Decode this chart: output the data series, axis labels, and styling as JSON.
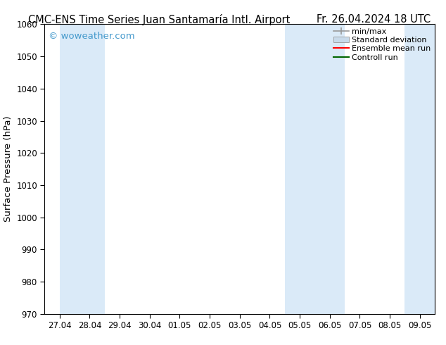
{
  "title_left": "CMC-ENS Time Series Juan Santamaría Intl. Airport",
  "title_right": "Fr. 26.04.2024 18 UTC",
  "ylabel": "Surface Pressure (hPa)",
  "ylim": [
    970,
    1060
  ],
  "yticks": [
    970,
    980,
    990,
    1000,
    1010,
    1020,
    1030,
    1040,
    1050,
    1060
  ],
  "xtick_labels": [
    "27.04",
    "28.04",
    "29.04",
    "30.04",
    "01.05",
    "02.05",
    "03.05",
    "04.05",
    "05.05",
    "06.05",
    "07.05",
    "08.05",
    "09.05"
  ],
  "watermark": "© woweather.com",
  "watermark_color": "#4499cc",
  "background_color": "#ffffff",
  "shaded_band_color": "#daeaf8",
  "shaded_ranges": [
    [
      0,
      1.5
    ],
    [
      7.5,
      9.5
    ],
    [
      11.5,
      13
    ]
  ],
  "legend_labels": [
    "min/max",
    "Standard deviation",
    "Ensemble mean run",
    "Controll run"
  ],
  "legend_minmax_color": "#999999",
  "legend_std_color": "#c8daea",
  "legend_ens_color": "#ff0000",
  "legend_ctrl_color": "#006600",
  "title_fontsize": 10.5,
  "tick_fontsize": 8.5,
  "ylabel_fontsize": 9.5,
  "watermark_fontsize": 9.5,
  "legend_fontsize": 8
}
